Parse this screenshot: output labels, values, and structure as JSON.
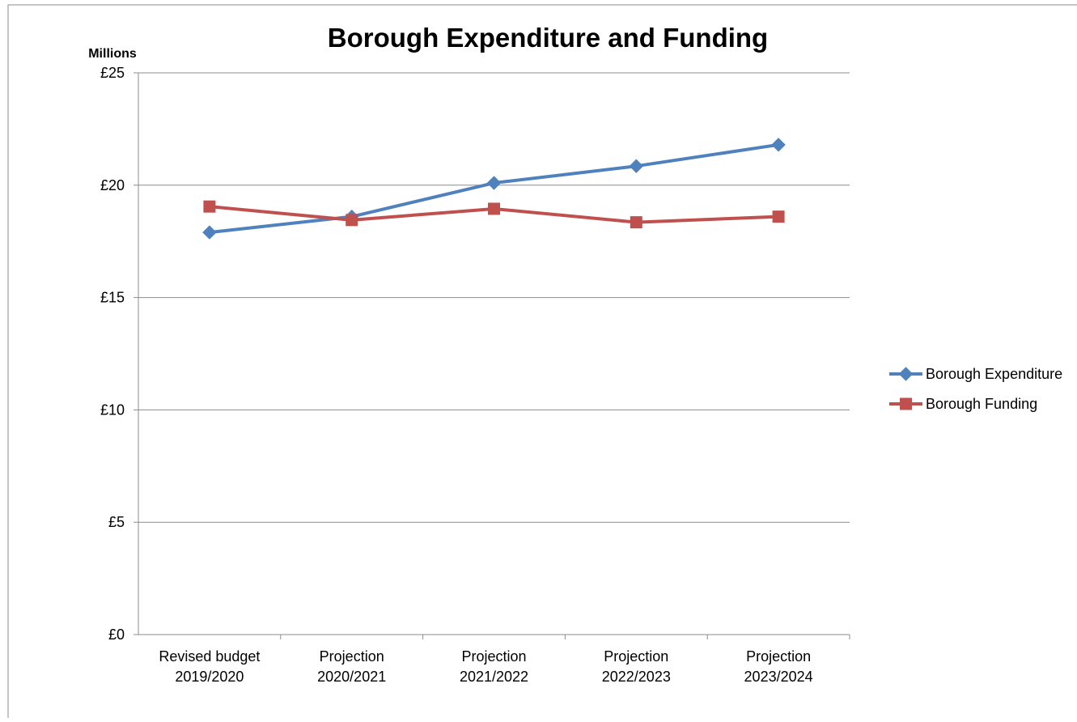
{
  "chart_data": {
    "type": "line",
    "title": "Borough Expenditure and Funding",
    "ylabel": "Millions",
    "xlabel": "",
    "categories": [
      [
        "Revised budget",
        "2019/2020"
      ],
      [
        "Projection",
        "2020/2021"
      ],
      [
        "Projection",
        "2021/2022"
      ],
      [
        "Projection",
        "2022/2023"
      ],
      [
        "Projection",
        "2023/2024"
      ]
    ],
    "ylim": [
      0,
      25
    ],
    "yticks": [
      0,
      5,
      10,
      15,
      20,
      25
    ],
    "ytick_labels": [
      "£0",
      "£5",
      "£10",
      "£15",
      "£20",
      "£25"
    ],
    "grid": true,
    "legend_position": "right",
    "series": [
      {
        "name": "Borough Expenditure",
        "values": [
          17.9,
          18.6,
          20.1,
          20.85,
          21.8
        ],
        "color": "#4f81bd",
        "marker": "diamond"
      },
      {
        "name": "Borough Funding",
        "values": [
          19.05,
          18.45,
          18.95,
          18.35,
          18.6
        ],
        "color": "#c0504d",
        "marker": "square"
      }
    ]
  }
}
